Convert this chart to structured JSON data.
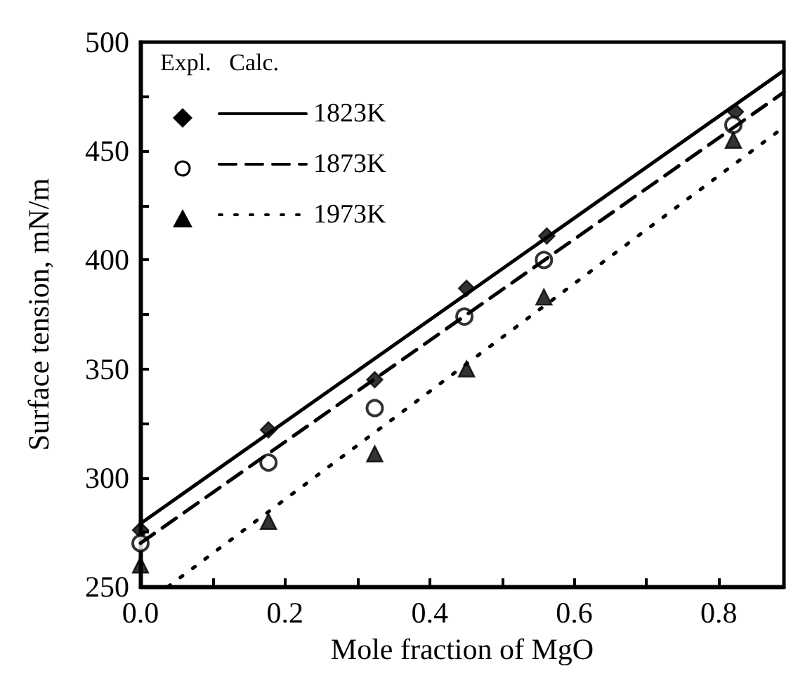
{
  "chart_data": {
    "type": "scatter",
    "xlabel": "Mole fraction of MgO",
    "ylabel": "Surface tension, mN/m",
    "legend_title": "Expl.   Calc.",
    "legend": "top left",
    "grid": false,
    "xlim": [
      0,
      0.89
    ],
    "xticks": [
      {
        "value": 0,
        "label": "0.0"
      },
      {
        "value": 0.1,
        "label": null
      },
      {
        "value": 0.2,
        "label": "0.2"
      },
      {
        "value": 0.3,
        "label": null
      },
      {
        "value": 0.4,
        "label": "0.4"
      },
      {
        "value": 0.5,
        "label": null
      },
      {
        "value": 0.6,
        "label": "0.6"
      },
      {
        "value": 0.7,
        "label": null
      },
      {
        "value": 0.8,
        "label": "0.8"
      }
    ],
    "ylim": [
      250,
      500
    ],
    "yticks": [
      250,
      {
        "value": 275,
        "label": null
      },
      300,
      {
        "value": 325,
        "label": null
      },
      350,
      {
        "value": 375,
        "label": null
      },
      400,
      {
        "value": 425,
        "label": null
      },
      450,
      {
        "value": 475,
        "label": null
      },
      500
    ],
    "series": [
      {
        "marker": "diamond",
        "color": "#000000",
        "x": [
          0,
          0.177,
          0.324,
          0.451,
          0.562,
          0.823
        ],
        "values": [
          276,
          322,
          345,
          387,
          411,
          468
        ]
      },
      {
        "marker": "circle",
        "color": "#000000",
        "x": [
          0,
          0.177,
          0.324,
          0.448,
          0.558,
          0.82
        ],
        "values": [
          270,
          307,
          332,
          374,
          400,
          462
        ]
      },
      {
        "marker": "triangle",
        "color": "#000000",
        "x": [
          0,
          0.177,
          0.324,
          0.451,
          0.558,
          0.82
        ],
        "values": [
          260,
          280,
          311,
          350,
          383,
          455
        ]
      },
      {
        "name": "1823K",
        "type": "line",
        "line_style": "solid",
        "color": "#000000",
        "x": [
          0,
          0.89
        ],
        "values": [
          279,
          487
        ]
      },
      {
        "name": "1873K",
        "type": "line",
        "line_style": "dashed",
        "color": "#000000",
        "x": [
          0,
          0.89
        ],
        "values": [
          270,
          477
        ]
      },
      {
        "name": "1973K",
        "type": "line",
        "line_style": "dotted",
        "color": "#000000",
        "x": [
          0.038,
          0.89
        ],
        "values": [
          250,
          461
        ]
      }
    ]
  }
}
